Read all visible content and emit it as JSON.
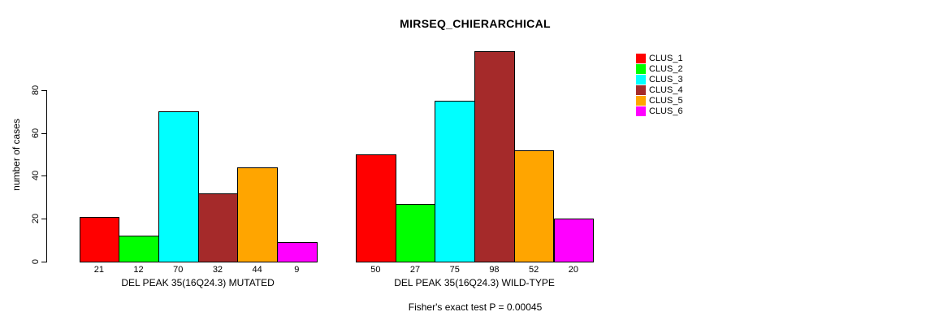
{
  "title": "MIRSEQ_CHIERARCHICAL",
  "chart_data": {
    "type": "bar",
    "title": "MIRSEQ_CHIERARCHICAL",
    "xlabel": "",
    "ylabel": "number of cases",
    "ylim": [
      0,
      100
    ],
    "yticks": [
      0,
      20,
      40,
      60,
      80
    ],
    "grid": false,
    "legend_position": "right",
    "legend": [
      {
        "name": "CLUS_1",
        "color": "#FF0000"
      },
      {
        "name": "CLUS_2",
        "color": "#00FF00"
      },
      {
        "name": "CLUS_3",
        "color": "#00FFFF"
      },
      {
        "name": "CLUS_4",
        "color": "#A52A2A"
      },
      {
        "name": "CLUS_5",
        "color": "#FFA500"
      },
      {
        "name": "CLUS_6",
        "color": "#FF00FF"
      }
    ],
    "categories": [
      "CLUS_1",
      "CLUS_2",
      "CLUS_3",
      "CLUS_4",
      "CLUS_5",
      "CLUS_6"
    ],
    "groups": [
      {
        "label": "DEL PEAK 35(16Q24.3) MUTATED",
        "values": [
          21,
          12,
          70,
          32,
          44,
          9
        ]
      },
      {
        "label": "DEL PEAK 35(16Q24.3) WILD-TYPE",
        "values": [
          50,
          27,
          75,
          98,
          52,
          20
        ]
      }
    ],
    "value_labels_shown": true,
    "annotation": "Fisher's exact test P = 0.00045"
  },
  "colors": {
    "background": "#FFFFFF",
    "axis": "#000000",
    "text": "#000000"
  }
}
